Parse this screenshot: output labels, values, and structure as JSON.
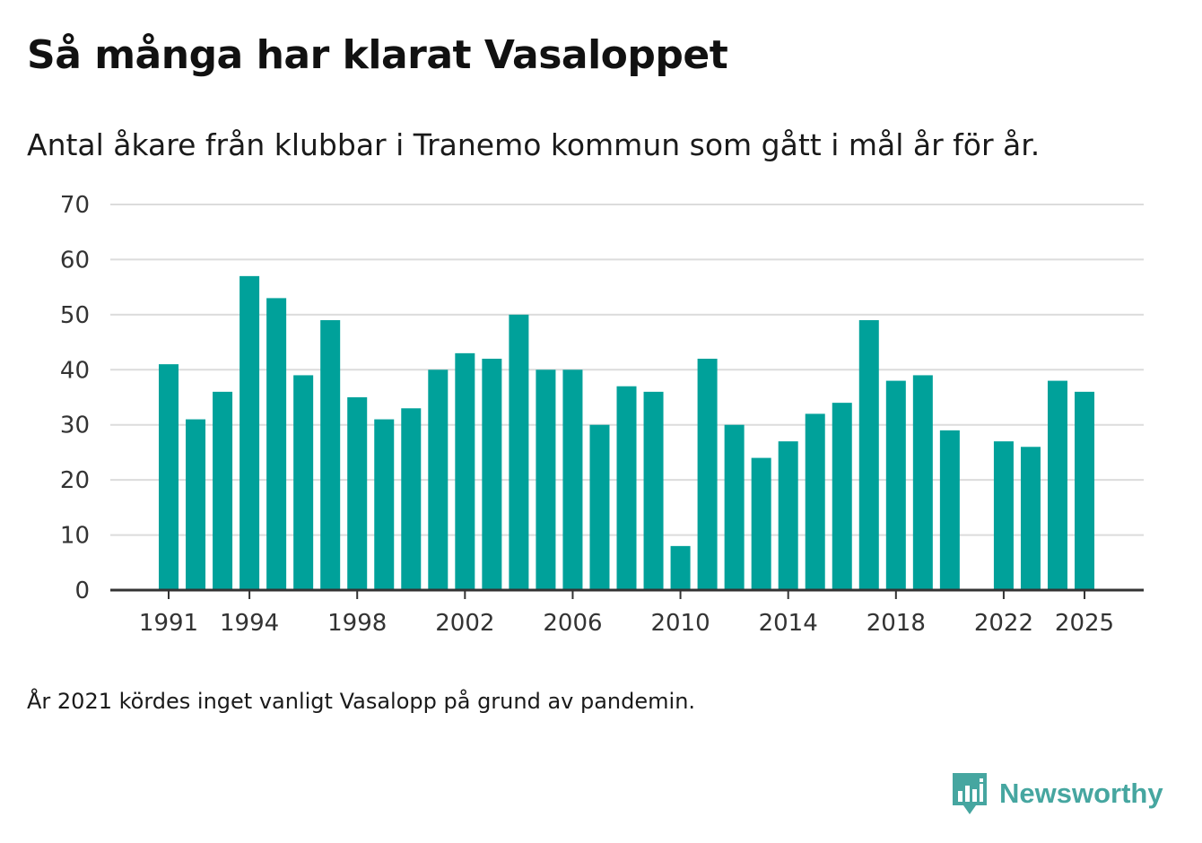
{
  "header": {
    "title": "Så många har klarat Vasaloppet",
    "subtitle": "Antal åkare från klubbar i Tranemo kommun som gått i mål år för år."
  },
  "note": "År 2021 kördes inget vanligt Vasalopp på grund av pandemin.",
  "brand": {
    "name": "Newsworthy",
    "icon": "bar-chart-icon"
  },
  "colors": {
    "bar": "#00a19a",
    "grid": "#dcdcdc",
    "axis": "#333333",
    "brand": "#46a6a0"
  },
  "chart_data": {
    "type": "bar",
    "title": "Så många har klarat Vasaloppet",
    "subtitle": "Antal åkare från klubbar i Tranemo kommun som gått i mål år för år.",
    "xlabel": "",
    "ylabel": "",
    "ylim": [
      0,
      70
    ],
    "yticks": [
      0,
      10,
      20,
      30,
      40,
      50,
      60,
      70
    ],
    "xticks": [
      1991,
      1994,
      1998,
      2002,
      2006,
      2010,
      2014,
      2018,
      2022,
      2025
    ],
    "categories": [
      1991,
      1992,
      1993,
      1994,
      1995,
      1996,
      1997,
      1998,
      1999,
      2000,
      2001,
      2002,
      2003,
      2004,
      2005,
      2006,
      2007,
      2008,
      2009,
      2010,
      2011,
      2012,
      2013,
      2014,
      2015,
      2016,
      2017,
      2018,
      2019,
      2020,
      2021,
      2022,
      2023,
      2024,
      2025
    ],
    "values": [
      41,
      31,
      36,
      57,
      53,
      39,
      49,
      35,
      31,
      33,
      40,
      43,
      42,
      50,
      40,
      40,
      30,
      37,
      36,
      8,
      42,
      30,
      24,
      27,
      32,
      34,
      49,
      38,
      39,
      29,
      null,
      27,
      26,
      38,
      36
    ],
    "grid": true
  }
}
